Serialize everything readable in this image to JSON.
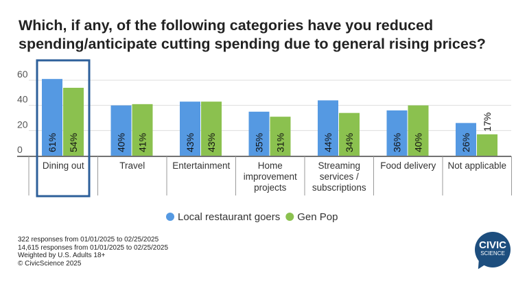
{
  "chart_data": {
    "type": "bar",
    "title": "Which, if any, of the following categories have you reduced spending/anticipate cutting spending due to general rising prices?",
    "categories": [
      [
        "Dining out"
      ],
      [
        "Travel"
      ],
      [
        "Entertainment"
      ],
      [
        "Home",
        "improvement",
        "projects"
      ],
      [
        "Streaming",
        "services /",
        "subscriptions"
      ],
      [
        "Food delivery"
      ],
      [
        "Not applicable"
      ]
    ],
    "series": [
      {
        "name": "Local restaurant goers",
        "color": "#5599e2",
        "values": [
          61,
          40,
          43,
          35,
          44,
          36,
          26
        ]
      },
      {
        "name": "Gen Pop",
        "color": "#8bc14f",
        "values": [
          54,
          41,
          43,
          31,
          34,
          40,
          17
        ]
      }
    ],
    "yticks": [
      0,
      20,
      40,
      60
    ],
    "ylim": [
      0,
      70
    ],
    "grid": true,
    "legend": "bottom",
    "highlight": "Dining out",
    "highlight_color": "#2d5f9a",
    "notes": [
      "322 responses from 01/01/2025 to 02/25/2025",
      "14,615 responses from 01/01/2025 to 02/25/2025",
      "Weighted by U.S. Adults 18+",
      "© CivicScience 2025"
    ]
  },
  "logo": {
    "line1": "CIVIC",
    "line2": "SCIENCE"
  }
}
